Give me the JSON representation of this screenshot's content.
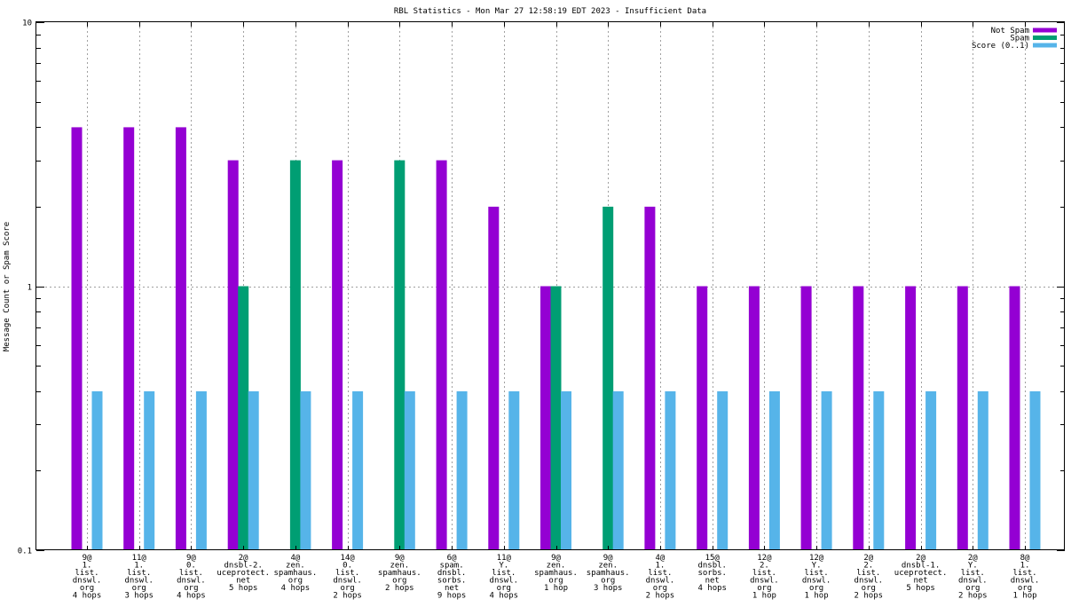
{
  "chart_data": {
    "type": "bar",
    "title": "RBL Statistics - Mon Mar 27 12:58:19 EDT 2023 - Insufficient Data",
    "xlabel": "",
    "ylabel": "Message Count or Spam Score",
    "y_scale": "log",
    "ylim": [
      0.1,
      10
    ],
    "y_ticks": [
      {
        "value": 0.1,
        "label": "0.1"
      },
      {
        "value": 1,
        "label": "1"
      },
      {
        "value": 10,
        "label": "10"
      }
    ],
    "grid": true,
    "legend_position": "top-right",
    "categories": [
      [
        "9@",
        "1.",
        "list.",
        "dnswl.",
        "org",
        "4 hops"
      ],
      [
        "11@",
        "1.",
        "list.",
        "dnswl.",
        "org",
        "3 hops"
      ],
      [
        "9@",
        "0.",
        "list.",
        "dnswl.",
        "org",
        "4 hops"
      ],
      [
        "2@",
        "dnsbl-2.",
        "uceprotect.",
        "net",
        "5 hops"
      ],
      [
        "4@",
        "zen.",
        "spamhaus.",
        "org",
        "4 hops"
      ],
      [
        "14@",
        "0.",
        "list.",
        "dnswl.",
        "org",
        "2 hops"
      ],
      [
        "9@",
        "zen.",
        "spamhaus.",
        "org",
        "2 hops"
      ],
      [
        "6@",
        "spam.",
        "dnsbl.",
        "sorbs.",
        "net",
        "9 hops"
      ],
      [
        "11@",
        "Y.",
        "list.",
        "dnswl.",
        "org",
        "4 hops"
      ],
      [
        "9@",
        "zen.",
        "spamhaus.",
        "org",
        "1 hop"
      ],
      [
        "9@",
        "zen.",
        "spamhaus.",
        "org",
        "3 hops"
      ],
      [
        "4@",
        "1.",
        "list.",
        "dnswl.",
        "org",
        "2 hops"
      ],
      [
        "15@",
        "dnsbl.",
        "sorbs.",
        "net",
        "4 hops"
      ],
      [
        "12@",
        "2.",
        "list.",
        "dnswl.",
        "org",
        "1 hop"
      ],
      [
        "12@",
        "Y.",
        "list.",
        "dnswl.",
        "org",
        "1 hop"
      ],
      [
        "2@",
        "2.",
        "list.",
        "dnswl.",
        "org",
        "2 hops"
      ],
      [
        "2@",
        "dnsbl-1.",
        "uceprotect.",
        "net",
        "5 hops"
      ],
      [
        "2@",
        "Y.",
        "list.",
        "dnswl.",
        "org",
        "2 hops"
      ],
      [
        "8@",
        "1.",
        "list.",
        "dnswl.",
        "org",
        "1 hop"
      ]
    ],
    "series": [
      {
        "name": "Not Spam",
        "color": "#9400d3",
        "values": [
          4,
          4,
          4,
          3,
          null,
          3,
          null,
          3,
          2,
          1,
          null,
          2,
          1,
          1,
          1,
          1,
          1,
          1,
          1
        ]
      },
      {
        "name": "Spam",
        "color": "#009e73",
        "values": [
          null,
          null,
          null,
          1,
          3,
          null,
          3,
          null,
          null,
          1,
          2,
          null,
          null,
          null,
          null,
          null,
          null,
          null,
          null
        ]
      },
      {
        "name": "Score (0..1)",
        "color": "#56b4e9",
        "values": [
          0.4,
          0.4,
          0.4,
          0.4,
          0.4,
          0.4,
          0.4,
          0.4,
          0.4,
          0.4,
          0.4,
          0.4,
          0.4,
          0.4,
          0.4,
          0.4,
          0.4,
          0.4,
          0.4
        ]
      }
    ]
  }
}
